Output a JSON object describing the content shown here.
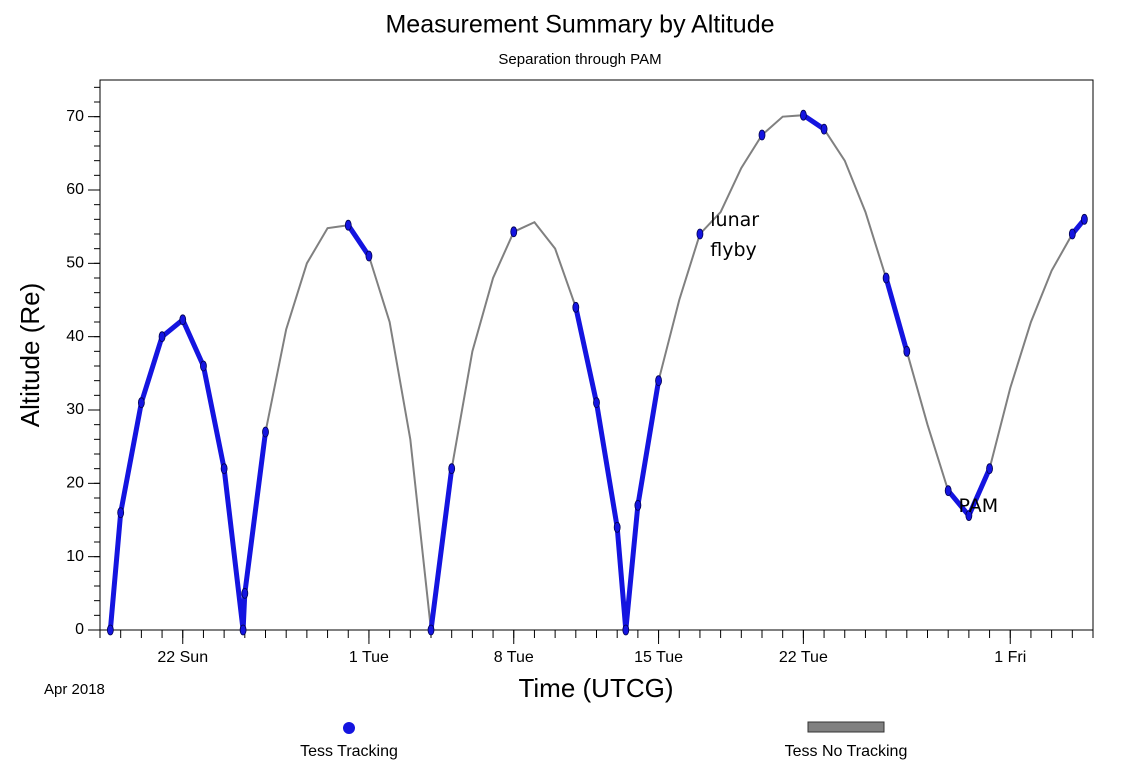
{
  "chart_data": {
    "type": "line",
    "title": "Measurement Summary by Altitude",
    "subtitle": "Separation through PAM",
    "x_label": "Time (UTCG)",
    "x_sublabel": "Apr 2018",
    "y_label": "Altitude (Re)",
    "x": [
      "2018-04-18T12:00",
      "2018-04-19T00:00",
      "2018-04-20T00:00",
      "2018-04-21T00:00",
      "2018-04-22T00:00",
      "2018-04-23T00:00",
      "2018-04-24T00:00",
      "2018-04-24T22:00",
      "2018-04-25T00:00",
      "2018-04-26T00:00",
      "2018-04-27T00:00",
      "2018-04-28T00:00",
      "2018-04-29T00:00",
      "2018-04-30T00:00",
      "2018-05-01T00:00",
      "2018-05-02T00:00",
      "2018-05-03T00:00",
      "2018-05-04T00:00",
      "2018-05-05T00:00",
      "2018-05-06T00:00",
      "2018-05-07T00:00",
      "2018-05-08T00:00",
      "2018-05-09T00:00",
      "2018-05-10T00:00",
      "2018-05-11T00:00",
      "2018-05-12T00:00",
      "2018-05-13T00:00",
      "2018-05-13T10:00",
      "2018-05-14T00:00",
      "2018-05-15T00:00",
      "2018-05-16T00:00",
      "2018-05-17T00:00",
      "2018-05-18T00:00",
      "2018-05-19T00:00",
      "2018-05-20T00:00",
      "2018-05-21T00:00",
      "2018-05-22T00:00",
      "2018-05-23T00:00",
      "2018-05-24T00:00",
      "2018-05-25T00:00",
      "2018-05-26T00:00",
      "2018-05-27T00:00",
      "2018-05-28T00:00",
      "2018-05-29T00:00",
      "2018-05-30T00:00",
      "2018-05-31T00:00",
      "2018-06-01T00:00",
      "2018-06-02T00:00",
      "2018-06-03T00:00",
      "2018-06-04T00:00",
      "2018-06-04T14:00"
    ],
    "series": [
      {
        "name": "Tess Tracking",
        "color": "#1414e0",
        "style": "marker",
        "values": [
          0,
          16,
          31,
          40,
          42.3,
          36,
          22,
          0,
          5,
          27,
          null,
          null,
          null,
          55.2,
          51,
          null,
          null,
          0,
          22,
          null,
          null,
          54.3,
          null,
          null,
          44,
          31,
          14,
          0,
          17,
          34,
          null,
          54,
          null,
          null,
          67.5,
          null,
          70.2,
          68.3,
          null,
          null,
          48,
          38,
          null,
          19,
          15.6,
          22,
          null,
          null,
          null,
          54,
          56
        ]
      },
      {
        "name": "Tess No Tracking",
        "color": "#808080",
        "style": "line",
        "values": [
          0,
          16,
          31,
          40,
          42.3,
          36,
          22,
          0,
          5,
          27,
          41,
          50,
          54.8,
          55.2,
          51,
          42,
          26,
          0,
          22,
          38,
          48,
          54.3,
          55.6,
          52,
          44,
          31,
          14,
          0,
          17,
          34,
          45,
          54,
          57,
          63,
          67.5,
          70,
          70.2,
          68.3,
          64,
          57,
          48,
          38,
          28,
          19,
          15.6,
          22,
          33,
          42,
          49,
          54,
          56
        ]
      }
    ],
    "xlim": [
      "2018-04-18T00:00",
      "2018-06-05T00:00"
    ],
    "xticks": [
      {
        "value": "2018-04-22T00:00",
        "label": "22 Sun"
      },
      {
        "value": "2018-05-01T00:00",
        "label": "1 Tue"
      },
      {
        "value": "2018-05-08T00:00",
        "label": "8 Tue"
      },
      {
        "value": "2018-05-15T00:00",
        "label": "15 Tue"
      },
      {
        "value": "2018-05-22T00:00",
        "label": "22 Tue"
      },
      {
        "value": "2018-06-01T00:00",
        "label": "1 Fri"
      }
    ],
    "ylim": [
      0,
      75
    ],
    "yticks": [
      0,
      10,
      20,
      30,
      40,
      50,
      60,
      70
    ],
    "annotations": [
      {
        "text": "lunar flyby",
        "x": "2018-05-17T12:00",
        "y": 53
      },
      {
        "text": "PAM",
        "x": "2018-05-29T12:00",
        "y": 14
      }
    ]
  }
}
